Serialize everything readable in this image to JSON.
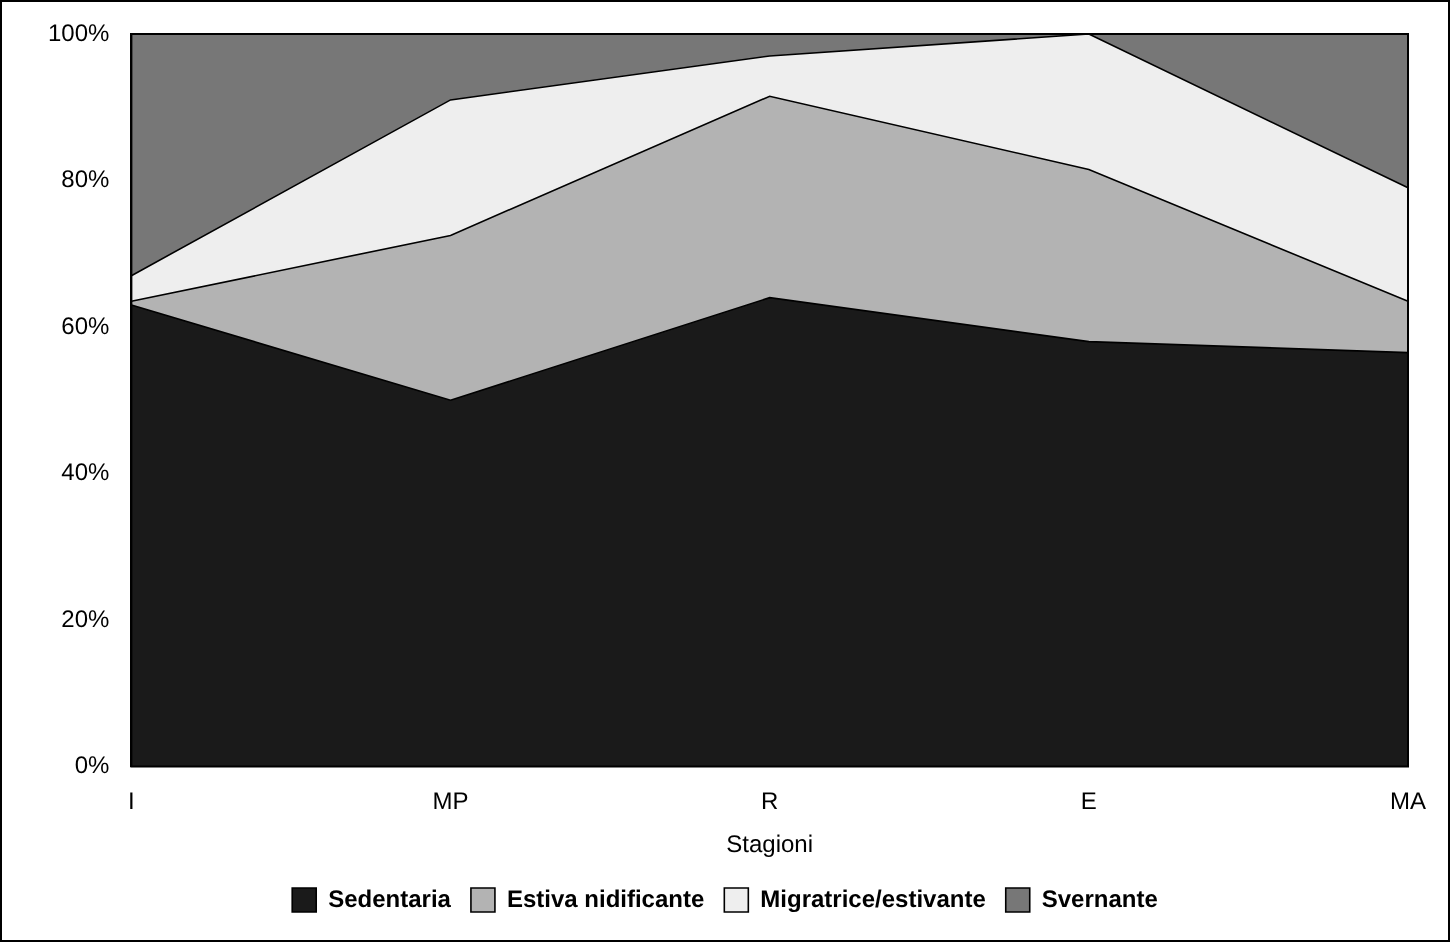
{
  "chart_data": {
    "type": "area",
    "stacked": true,
    "xlabel": "Stagioni",
    "categories": [
      "I",
      "MP",
      "R",
      "E",
      "MA"
    ],
    "series": [
      {
        "name": "Sedentaria",
        "color": "#1a1a1a",
        "values": [
          63,
          50,
          64,
          58,
          56.5
        ]
      },
      {
        "name": "Estiva nidificante",
        "color": "#b3b3b3",
        "values": [
          0.5,
          22.5,
          27.5,
          23.5,
          7
        ]
      },
      {
        "name": "Migratrice/estivante",
        "color": "#eeeeee",
        "values": [
          3.5,
          18.5,
          5.5,
          18.5,
          15.5
        ]
      },
      {
        "name": "Svernante",
        "color": "#777777",
        "values": [
          33,
          9,
          3,
          0,
          21
        ]
      }
    ],
    "ylim": [
      0,
      100
    ],
    "yticks": [
      {
        "value": 0,
        "label": "0%"
      },
      {
        "value": 20,
        "label": "20%"
      },
      {
        "value": 40,
        "label": "40%"
      },
      {
        "value": 60,
        "label": "60%"
      },
      {
        "value": 80,
        "label": "80%"
      },
      {
        "value": 100,
        "label": "100%"
      }
    ],
    "grid": false,
    "legend": "bottom"
  }
}
